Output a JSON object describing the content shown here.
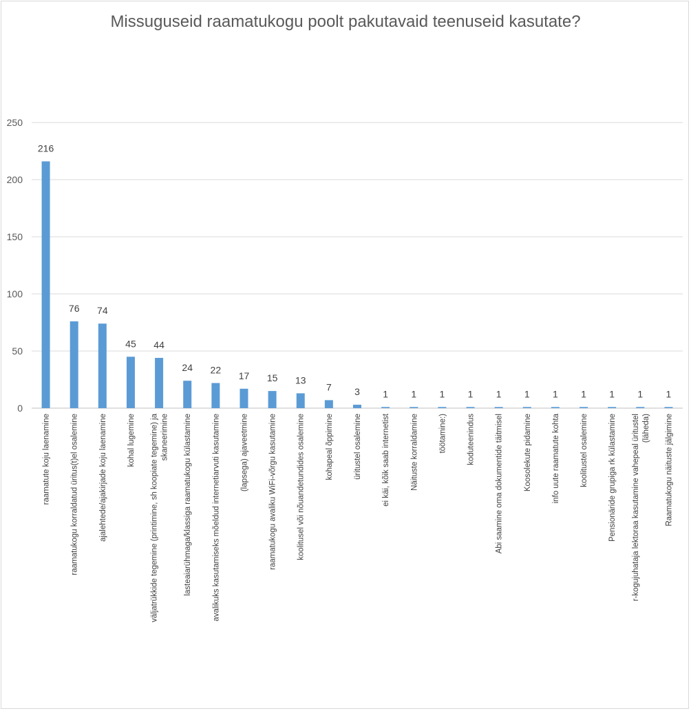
{
  "chart_data": {
    "type": "bar",
    "title": "Missuguseid raamatukogu poolt pakutavaid teenuseid kasutate?",
    "xlabel": "",
    "ylabel": "",
    "ylim": [
      0,
      250
    ],
    "yticks": [
      "0",
      "50",
      "100",
      "150",
      "200",
      "250"
    ],
    "grid": true,
    "legend": "none",
    "bar_color": "#5b9bd5",
    "categories": [
      [
        "raamatute koju laenamine"
      ],
      [
        "raamatukogu korraldatud üritus(t)el osalemine"
      ],
      [
        "ajalehtede/ajakirjade koju laenamine"
      ],
      [
        "kohal lugemine"
      ],
      [
        "väljatrükkide tegemine (printimine, sh koopiate tegemine) ja",
        "skaneerimine"
      ],
      [
        "lasteaiarühmaga/klassiga raamatukogu külastamine"
      ],
      [
        "avalikuks kasutamiseks mõeldud internetiarvuti kasutamine"
      ],
      [
        "(lapsega) ajaveetmine"
      ],
      [
        "raamatukogu avaliku WiFi-võrgu kasutamine"
      ],
      [
        "koolitusel või nõuandetundides osalemine"
      ],
      [
        "kohapeal õppimine"
      ],
      [
        "üritustel osalemine"
      ],
      [
        "ei käi, kõik saab internetist"
      ],
      [
        "Näituste korraldamine"
      ],
      [
        "töötamine:)"
      ],
      [
        "koduteenindus"
      ],
      [
        "Abi saamine oma dokumentide täitmisel"
      ],
      [
        "Koosolekute pidamine"
      ],
      [
        "info uute raamatute kohta"
      ],
      [
        "koolitustel osalemine"
      ],
      [
        "Pensionäride grupiga rk külastamine"
      ],
      [
        "r-kogujuhataja lektoraa kasutamine vahepeal üritustel",
        "(läheda)"
      ],
      [
        "Raamatukogu näituste jälgimine"
      ]
    ],
    "values": [
      216,
      76,
      74,
      45,
      44,
      24,
      22,
      17,
      15,
      13,
      7,
      3,
      1,
      1,
      1,
      1,
      1,
      1,
      1,
      1,
      1,
      1,
      1
    ]
  }
}
